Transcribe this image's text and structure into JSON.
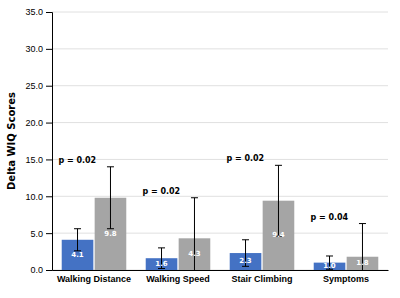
{
  "chart_data": {
    "type": "bar",
    "categories": [
      "Walking Distance",
      "Walking Speed",
      "Stair Climbing",
      "Symptoms"
    ],
    "series": [
      {
        "color": "#4472C4",
        "values": [
          4.1,
          1.6,
          2.3,
          1.0
        ],
        "value_labels": [
          "4.1",
          "1.6",
          "2.3",
          "1.0"
        ],
        "errors": [
          1.5,
          1.4,
          1.8,
          0.9
        ]
      },
      {
        "color": "#A5A5A5",
        "values": [
          9.8,
          4.3,
          9.4,
          1.8
        ],
        "errors": [
          4.2,
          5.5,
          4.8,
          4.5
        ]
      }
    ],
    "annotations": [
      "p = 0.02",
      "p = 0.02",
      "p = 0.02",
      "p = 0.04"
    ],
    "ylabel": "Delta WIQ Scores",
    "ylim": [
      0,
      35
    ],
    "yticks": [
      {
        "value": 0,
        "label": "0.0"
      },
      {
        "value": 5,
        "label": "5.0"
      },
      {
        "value": 10,
        "label": "10.0"
      },
      {
        "value": 15,
        "label": "15.0"
      },
      {
        "value": 20,
        "label": "20.0"
      },
      {
        "value": 25,
        "label": "25.0"
      },
      {
        "value": 30,
        "label": "30.0"
      },
      {
        "value": 35,
        "label": "35.0"
      }
    ],
    "grid": true,
    "data_labels": true
  }
}
